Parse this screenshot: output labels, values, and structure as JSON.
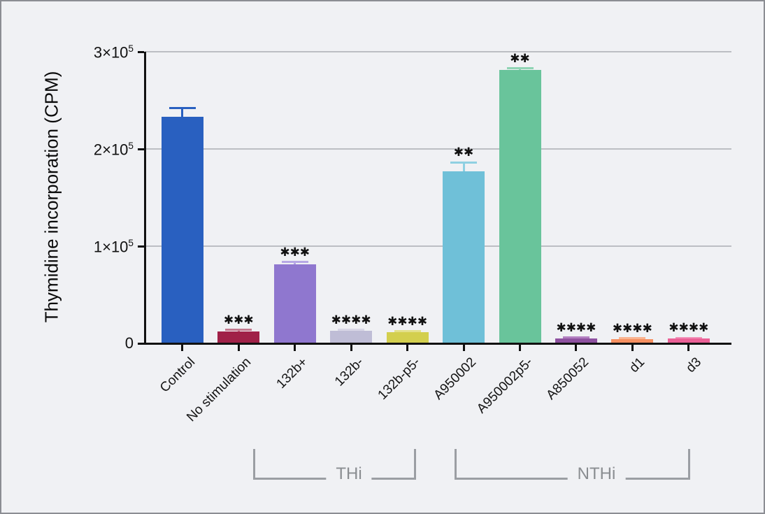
{
  "chart_data": {
    "type": "bar",
    "title": "",
    "xlabel": "",
    "ylabel": "Thymidine incorporation (CPM)",
    "ylim": [
      0,
      300000
    ],
    "grid": true,
    "legend": "none",
    "yticks": [
      {
        "value": 0,
        "label": "0"
      },
      {
        "value": 100000,
        "label": "1×10^5"
      },
      {
        "value": 200000,
        "label": "2×10^5"
      },
      {
        "value": 300000,
        "label": "3×10^5"
      }
    ],
    "bars": [
      {
        "label": "Control",
        "value": 233000,
        "error": 9000,
        "color": "#2960c0",
        "error_color": "#2960c0",
        "significance": ""
      },
      {
        "label": "No stimulation",
        "value": 12500,
        "error": 1500,
        "color": "#a02148",
        "error_color": "#c4798f",
        "significance": "***"
      },
      {
        "label": "132b+",
        "value": 81000,
        "error": 2600,
        "color": "#8f77cf",
        "error_color": "#b7a8e5",
        "significance": "***"
      },
      {
        "label": "132b-",
        "value": 13000,
        "error": 1000,
        "color": "#bfbdd6",
        "error_color": "#d8d6e6",
        "significance": "****"
      },
      {
        "label": "132b-p5-",
        "value": 11500,
        "error": 800,
        "color": "#d3cf4e",
        "error_color": "#e3e08a",
        "significance": "****"
      },
      {
        "label": "A950002",
        "value": 177000,
        "error": 9000,
        "color": "#6fc0d8",
        "error_color": "#8fd0e2",
        "significance": "**"
      },
      {
        "label": "A950002p5-",
        "value": 281000,
        "error": 2000,
        "color": "#69c49b",
        "error_color": "#8fd4b4",
        "significance": "**"
      },
      {
        "label": "A850052",
        "value": 5000,
        "error": 800,
        "color": "#8e51a0",
        "error_color": "#b27fc0",
        "significance": "****"
      },
      {
        "label": "d1",
        "value": 4500,
        "error": 700,
        "color": "#f69061",
        "error_color": "#f9b491",
        "significance": "****"
      },
      {
        "label": "d3",
        "value": 5000,
        "error": 700,
        "color": "#ea6096",
        "error_color": "#f290b8",
        "significance": "****"
      }
    ],
    "groups": [
      {
        "label": "THi",
        "from_bar": 2,
        "to_bar": 4
      },
      {
        "label": "NTHi",
        "from_bar": 5,
        "to_bar": 9
      }
    ]
  },
  "colors": {
    "background": "#f0f1f4",
    "frame_border": "#8b8d93",
    "axis": "#111111",
    "gridline": "#bcbec3",
    "bracket": "#9b9ea3",
    "bracket_label": "#8a8d91",
    "significance": "#111111"
  }
}
